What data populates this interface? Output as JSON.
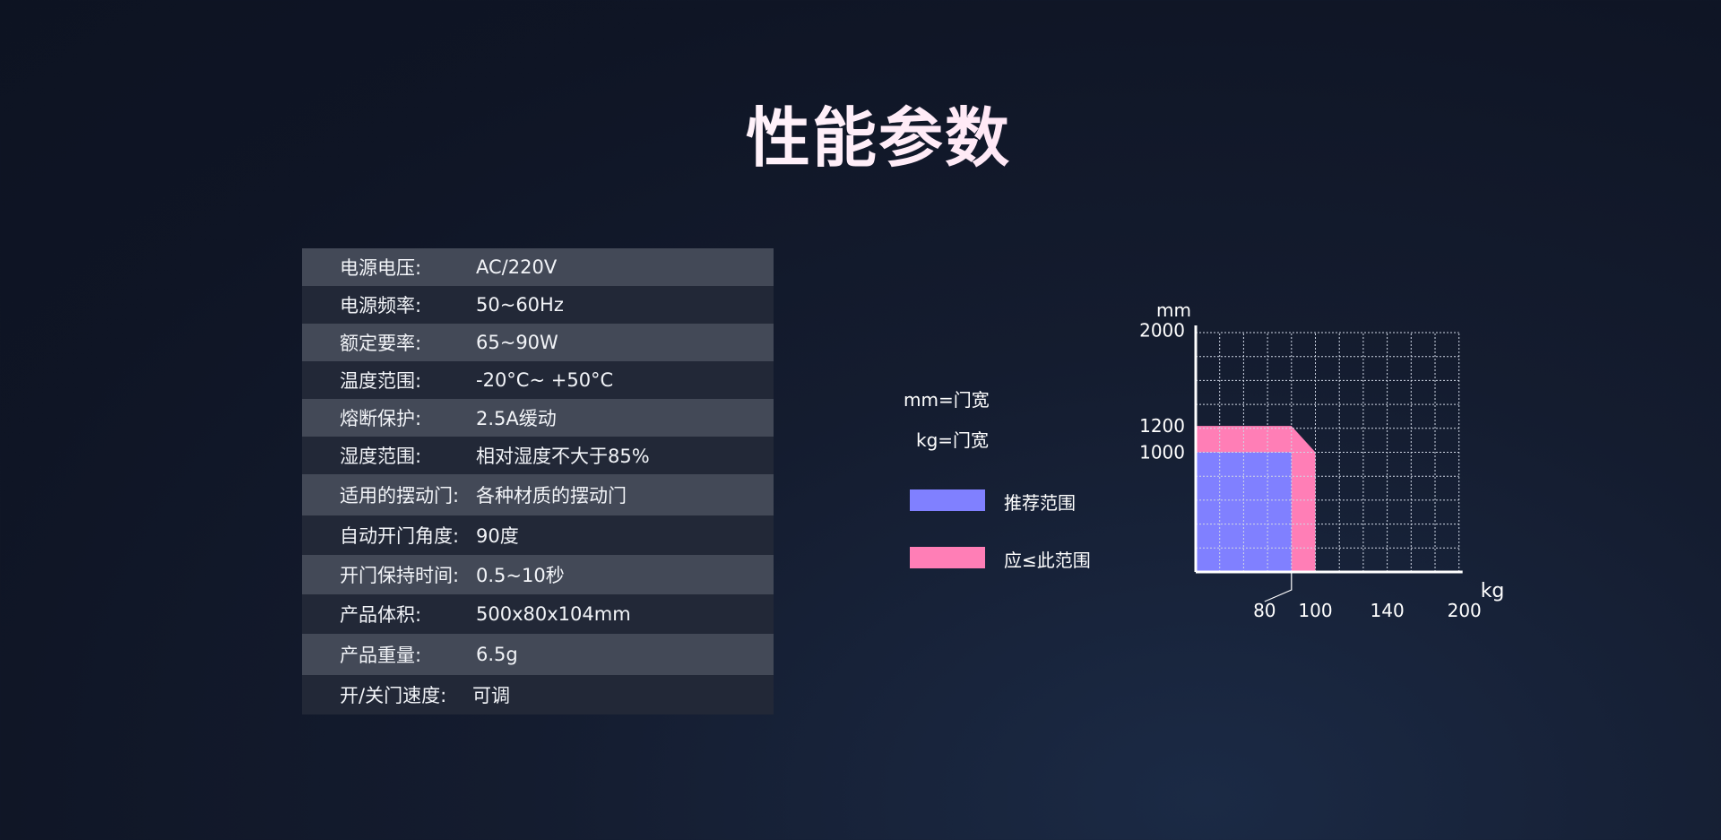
{
  "title": "性能参数",
  "specs": [
    {
      "label": "电源电压:",
      "value": "AC/220V"
    },
    {
      "label": "电源频率:",
      "value": "50~60Hz"
    },
    {
      "label": "额定要率:",
      "value": "65~90W"
    },
    {
      "label": "温度范围:",
      "value": "-20°C~ +50°C"
    },
    {
      "label": "熔断保护:",
      "value": " 2.5A缓动"
    },
    {
      "label": "湿度范围:",
      "value": " 相对湿度不大于85%"
    },
    {
      "label": "适用的摆动门:",
      "value": "各种材质的摆动门"
    },
    {
      "label": "自动开门角度:",
      "value": "90度"
    },
    {
      "label": "开门保持时间:",
      "value": "0.5~10秒"
    },
    {
      "label": "产品体积:",
      "value": "500x80x104mm"
    },
    {
      "label": "产品重量:",
      "value": "6.5g"
    },
    {
      "label": "开/关门速度:",
      "value": "可调"
    }
  ],
  "legend": {
    "unit_mm": "mm=门宽",
    "unit_kg": "kg=门宽",
    "recommended": {
      "label": "推荐范围",
      "color": "#8080ff"
    },
    "limit": {
      "label": "应≤此范围",
      "color": "#ff7eb6"
    }
  },
  "chart_data": {
    "type": "area",
    "ylabel": "mm",
    "xlabel": "kg",
    "y_ticks": [
      "2000",
      "1200",
      "1000"
    ],
    "x_ticks": [
      "80",
      "100",
      "140",
      "200"
    ],
    "grid": true,
    "regions": [
      {
        "name": "推荐范围",
        "color": "#8080ff",
        "x_max": 80,
        "y_max": 1000
      },
      {
        "name": "应≤此范围",
        "color": "#ff7eb6",
        "x_max": 100,
        "y_max": 1200
      }
    ]
  }
}
